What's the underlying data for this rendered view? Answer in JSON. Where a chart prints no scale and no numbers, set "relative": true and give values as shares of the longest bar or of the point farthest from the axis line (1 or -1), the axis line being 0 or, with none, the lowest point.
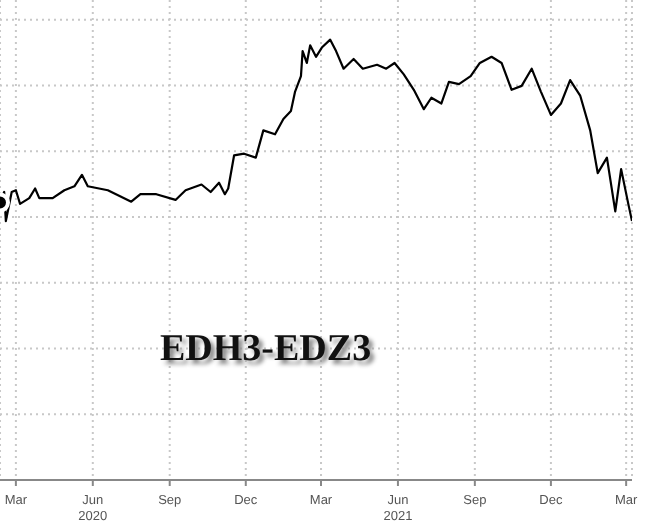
{
  "chart_data": {
    "type": "line",
    "relative": true,
    "grid": true,
    "color": "#000000",
    "marker": "none",
    "annotations": [
      "EDH3-EDZ3"
    ],
    "xlim": [
      "2020-02-11",
      "2022-03-08"
    ],
    "xticks": [
      {
        "value": "2020-03-01",
        "label": "Mar"
      },
      {
        "value": "2020-06-01",
        "label": "Jun 2020"
      },
      {
        "value": "2020-09-01",
        "label": "Sep"
      },
      {
        "value": "2020-12-01",
        "label": "Dec"
      },
      {
        "value": "2021-03-01",
        "label": "Mar"
      },
      {
        "value": "2021-06-01",
        "label": "Jun 2021"
      },
      {
        "value": "2021-09-01",
        "label": "Sep"
      },
      {
        "value": "2021-12-01",
        "label": "Dec"
      },
      {
        "value": "2022-03-01",
        "label": "Mar"
      }
    ],
    "x": [
      "2020-02-11",
      "2020-02-16",
      "2020-02-18",
      "2020-02-25",
      "2020-03-01",
      "2020-03-06",
      "2020-03-17",
      "2020-03-24",
      "2020-03-29",
      "2020-04-14",
      "2020-04-28",
      "2020-05-10",
      "2020-05-19",
      "2020-05-26",
      "2020-06-19",
      "2020-07-17",
      "2020-07-28",
      "2020-08-16",
      "2020-09-08",
      "2020-09-20",
      "2020-10-09",
      "2020-10-20",
      "2020-10-30",
      "2020-11-06",
      "2020-11-10",
      "2020-11-17",
      "2020-11-29",
      "2020-12-13",
      "2020-12-22",
      "2021-01-05",
      "2021-01-15",
      "2021-01-24",
      "2021-01-29",
      "2021-02-05",
      "2021-02-07",
      "2021-02-12",
      "2021-02-16",
      "2021-02-23",
      "2021-03-02",
      "2021-03-12",
      "2021-03-19",
      "2021-03-28",
      "2021-04-09",
      "2021-04-20",
      "2021-05-07",
      "2021-05-18",
      "2021-05-28",
      "2021-06-08",
      "2021-06-20",
      "2021-07-02",
      "2021-07-11",
      "2021-07-23",
      "2021-08-01",
      "2021-08-13",
      "2021-08-27",
      "2021-09-07",
      "2021-09-21",
      "2021-10-03",
      "2021-10-15",
      "2021-10-27",
      "2021-11-08",
      "2021-11-19",
      "2021-12-01",
      "2021-12-13",
      "2021-12-24",
      "2022-01-05",
      "2022-01-17",
      "2022-01-26",
      "2022-02-06",
      "2022-02-16",
      "2022-02-23",
      "2022-03-04",
      "2022-03-08"
    ],
    "values": [
      0.63,
      0.654,
      0.588,
      0.654,
      0.658,
      0.627,
      0.64,
      0.662,
      0.64,
      0.64,
      0.658,
      0.667,
      0.693,
      0.667,
      0.658,
      0.632,
      0.649,
      0.649,
      0.636,
      0.658,
      0.671,
      0.654,
      0.675,
      0.649,
      0.662,
      0.737,
      0.741,
      0.732,
      0.794,
      0.785,
      0.82,
      0.838,
      0.882,
      0.917,
      0.974,
      0.947,
      0.987,
      0.961,
      0.982,
      1.0,
      0.974,
      0.934,
      0.956,
      0.934,
      0.943,
      0.934,
      0.947,
      0.921,
      0.886,
      0.842,
      0.868,
      0.855,
      0.904,
      0.899,
      0.917,
      0.947,
      0.961,
      0.947,
      0.886,
      0.895,
      0.934,
      0.882,
      0.829,
      0.855,
      0.908,
      0.873,
      0.794,
      0.697,
      0.732,
      0.61,
      0.706,
      0.623,
      0.588
    ]
  }
}
